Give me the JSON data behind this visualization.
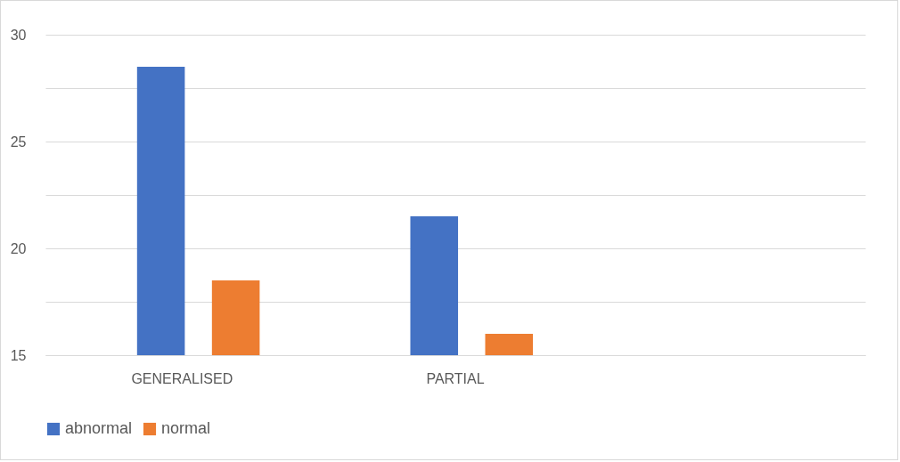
{
  "chart_data": {
    "type": "bar",
    "categories": [
      "GENERALISED",
      "PARTIAL",
      null
    ],
    "series": [
      {
        "name": "abnormal",
        "color": "#4472c4",
        "values": [
          28.5,
          21.5,
          null
        ]
      },
      {
        "name": "normal",
        "color": "#ed7d31",
        "values": [
          18.5,
          16.0,
          null
        ]
      }
    ],
    "ylim": [
      15,
      30
    ],
    "yticks": [
      15,
      {
        "value": 17.5,
        "label": null
      },
      20,
      {
        "value": 22.5,
        "label": null
      },
      25,
      {
        "value": 27.5,
        "label": null
      },
      30
    ],
    "grid": "y",
    "legend": "bottom"
  }
}
